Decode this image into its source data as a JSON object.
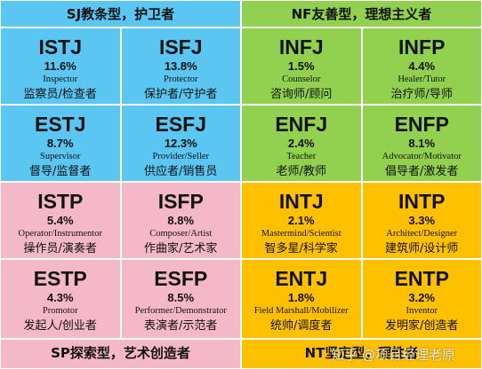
{
  "groups": [
    {
      "title": "SJ教条型，护卫者",
      "cells": [
        {
          "type": "ISTJ",
          "percent": "11.6%",
          "role": "Inspector",
          "role_cn": "监察员/检查者"
        },
        {
          "type": "ISFJ",
          "percent": "13.8%",
          "role": "Protector",
          "role_cn": "保护者/守护者"
        },
        {
          "type": "ESTJ",
          "percent": "8.7%",
          "role": "Supervisor",
          "role_cn": "督导/监督者"
        },
        {
          "type": "ESFJ",
          "percent": "12.3%",
          "role": "Provider/Seller",
          "role_cn": "供应者/销售员"
        }
      ]
    },
    {
      "title": "NF友善型，理想主义者",
      "cells": [
        {
          "type": "INFJ",
          "percent": "1.5%",
          "role": "Counselor",
          "role_cn": "咨询师/顾问"
        },
        {
          "type": "INFP",
          "percent": "4.4%",
          "role": "Healer/Tutor",
          "role_cn": "治疗师/导师"
        },
        {
          "type": "ENFJ",
          "percent": "2.4%",
          "role": "Teacher",
          "role_cn": "老师/教师"
        },
        {
          "type": "ENFP",
          "percent": "8.1%",
          "role": "Advocator/Motivator",
          "role_cn": "倡导者/激发者"
        }
      ]
    },
    {
      "title": "SP探索型，艺术创造者",
      "cells": [
        {
          "type": "ISTP",
          "percent": "5.4%",
          "role": "Operator/Instrumentor",
          "role_cn": "操作员/演奏者"
        },
        {
          "type": "ISFP",
          "percent": "8.8%",
          "role": "Composer/Artist",
          "role_cn": "作曲家/艺术家"
        },
        {
          "type": "ESTP",
          "percent": "4.3%",
          "role": "Promotor",
          "role_cn": "发起人/创业者"
        },
        {
          "type": "ESFP",
          "percent": "8.5%",
          "role": "Performer/Demonstrator",
          "role_cn": "表演者/示范者"
        }
      ]
    },
    {
      "title": "NT坚定型，理性者",
      "cells": [
        {
          "type": "INTJ",
          "percent": "2.1%",
          "role": "Mastermind/Scientist",
          "role_cn": "智多星/科学家"
        },
        {
          "type": "INTP",
          "percent": "3.3%",
          "role": "Architect/Designer",
          "role_cn": "建筑师/设计师"
        },
        {
          "type": "ENTJ",
          "percent": "1.8%",
          "role": "Field Marshall/Mobilizer",
          "role_cn": "统帅/调度者"
        },
        {
          "type": "ENTP",
          "percent": "3.2%",
          "role": "Inventor",
          "role_cn": "发明家/创造者"
        }
      ]
    }
  ],
  "watermark": "知乎 @项目经理老原"
}
